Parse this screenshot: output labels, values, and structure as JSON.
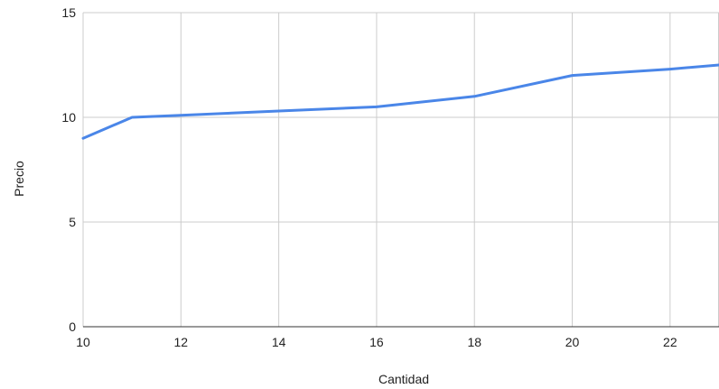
{
  "chart_data": {
    "type": "line",
    "title": "",
    "xlabel": "Cantidad",
    "ylabel": "Precio",
    "xlim": [
      10,
      23
    ],
    "ylim": [
      0,
      15
    ],
    "x_ticks": [
      10,
      12,
      14,
      16,
      18,
      20,
      22
    ],
    "y_ticks": [
      0,
      5,
      10,
      15
    ],
    "grid": true,
    "legend": "none",
    "series": [
      {
        "color": "#4a86e8",
        "x": [
          10,
          11,
          12,
          14,
          16,
          18,
          20,
          22,
          23
        ],
        "y": [
          9.0,
          10.0,
          10.1,
          10.3,
          10.5,
          11.0,
          12.0,
          12.3,
          12.5
        ]
      }
    ]
  }
}
